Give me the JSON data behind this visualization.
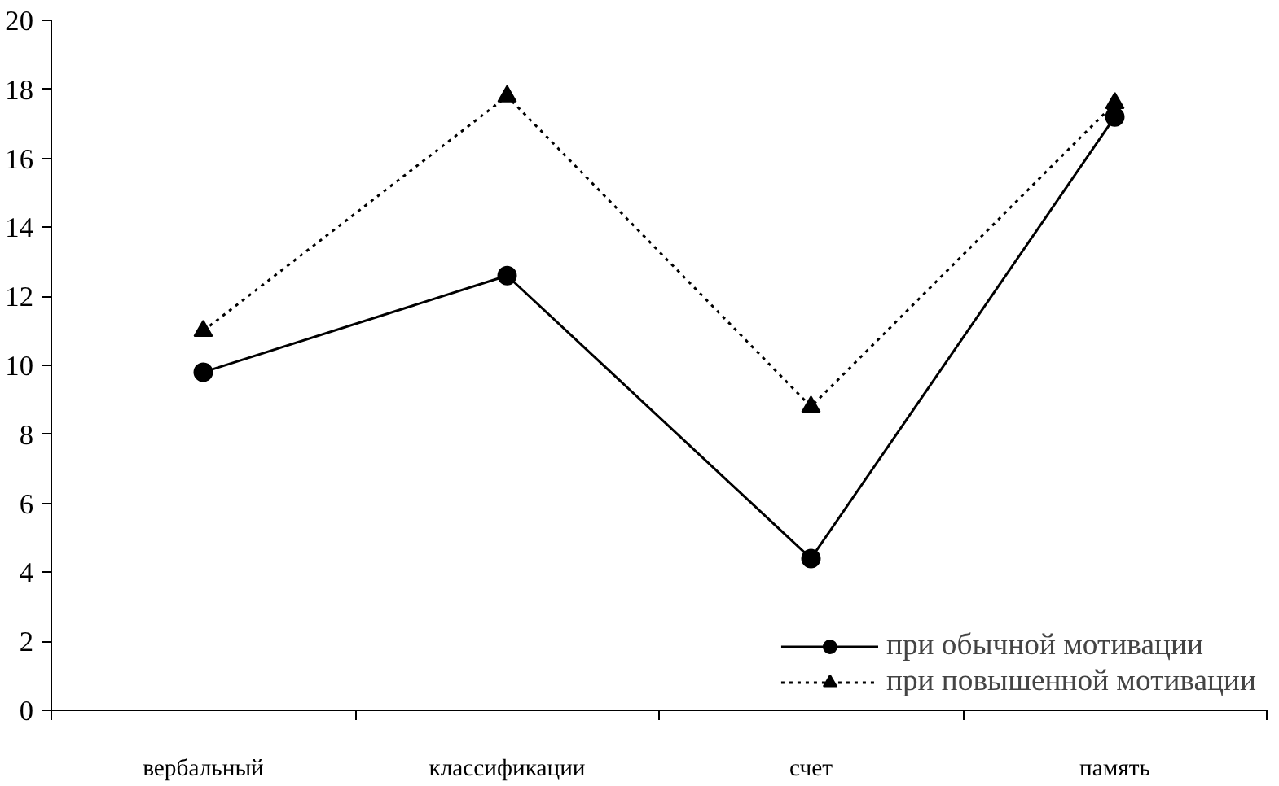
{
  "chart_data": {
    "type": "line",
    "categories": [
      "вербальный",
      "классификации",
      "счет",
      "память"
    ],
    "series": [
      {
        "name": "при обычной мотивации",
        "color": "#000000",
        "values": [
          9.8,
          12.6,
          4.4,
          17.2
        ],
        "marker": "circle",
        "line_style": "solid"
      },
      {
        "name": "при повышенной мотивации",
        "color": "#000000",
        "values": [
          11,
          17.8,
          8.8,
          17.6
        ],
        "marker": "triangle",
        "line_style": "dotted"
      }
    ],
    "ylim": [
      0,
      20
    ],
    "yticks": [
      0,
      2,
      4,
      6,
      8,
      10,
      12,
      14,
      16,
      18,
      20
    ],
    "grid": false,
    "legend": "bottom right"
  }
}
